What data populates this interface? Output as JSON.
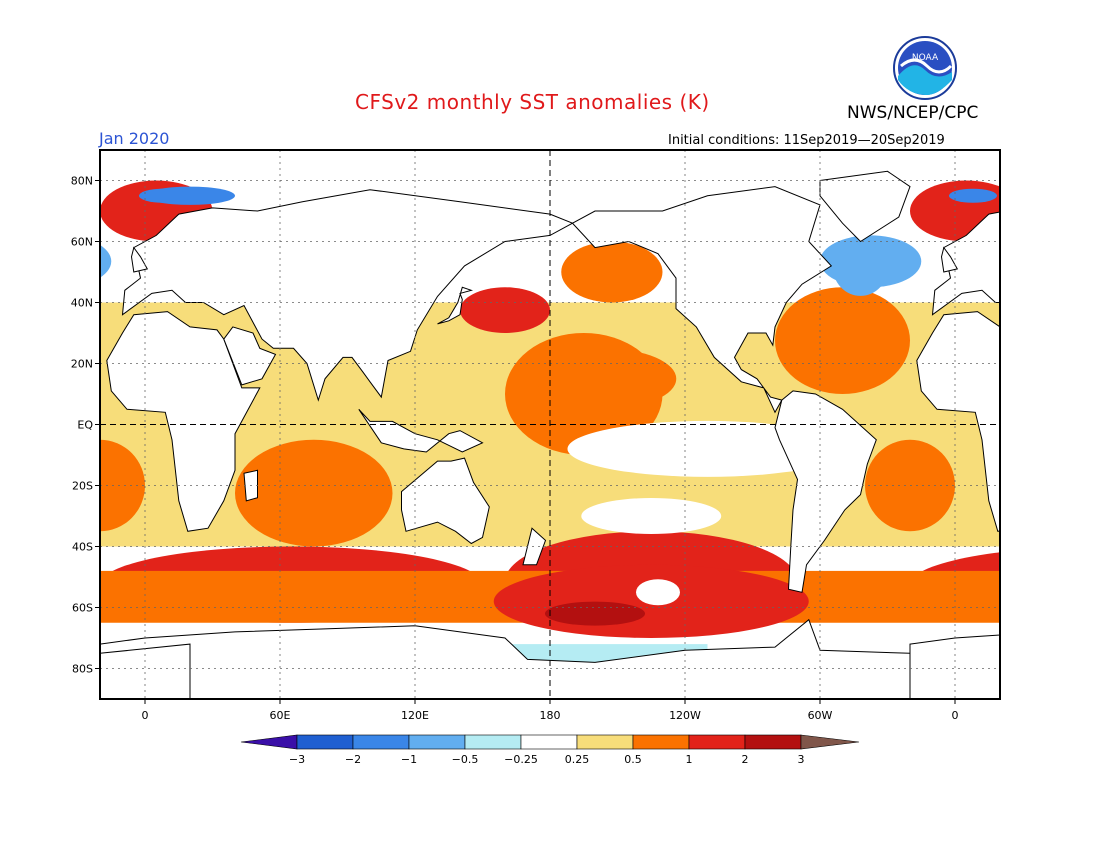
{
  "header": {
    "title": "CFSv2 monthly SST anomalies (K)",
    "agency": "NWS/NCEP/CPC",
    "month": "Jan 2020",
    "initial_conditions": "Initial conditions: 11Sep2019—20Sep2019",
    "logo_text": "NOAA"
  },
  "map": {
    "projection": "cylindrical",
    "lon_range": [
      -20,
      380
    ],
    "lat_range": [
      -90,
      90
    ],
    "lat_ticks": [
      {
        "lat": 80,
        "label": "80N"
      },
      {
        "lat": 60,
        "label": "60N"
      },
      {
        "lat": 40,
        "label": "40N"
      },
      {
        "lat": 20,
        "label": "20N"
      },
      {
        "lat": 0,
        "label": "EQ"
      },
      {
        "lat": -20,
        "label": "20S"
      },
      {
        "lat": -40,
        "label": "40S"
      },
      {
        "lat": -60,
        "label": "60S"
      },
      {
        "lat": -80,
        "label": "80S"
      }
    ],
    "lon_ticks": [
      {
        "lon": 0,
        "label": "0"
      },
      {
        "lon": 60,
        "label": "60E"
      },
      {
        "lon": 120,
        "label": "120E"
      },
      {
        "lon": 180,
        "label": "180"
      },
      {
        "lon": 240,
        "label": "120W"
      },
      {
        "lon": 300,
        "label": "60W"
      },
      {
        "lon": 360,
        "label": "0"
      }
    ],
    "grid_lines": "dotted",
    "reference_lines": [
      "equator (dashed)",
      "180 meridian (dashed)"
    ]
  },
  "colorbar": {
    "labels": [
      "−3",
      "−2",
      "−1",
      "−0.5",
      "−0.25",
      "0.25",
      "0.5",
      "1",
      "2",
      "3"
    ],
    "colors": [
      "#3a0fa8",
      "#1f5fd1",
      "#3a86e8",
      "#62aef0",
      "#b5ecf3",
      "#ffffff",
      "#f7dd7a",
      "#fb7200",
      "#e2231a",
      "#b31010",
      "#80564a"
    ]
  },
  "chart_data": {
    "type": "heatmap",
    "title": "CFSv2 monthly SST anomalies (K)",
    "units": "K",
    "valid_month": "Jan 2020",
    "initial_conditions": "11Sep2019—20Sep2019",
    "contour_levels": [
      -3,
      -2,
      -1,
      -0.5,
      -0.25,
      0.25,
      0.5,
      1,
      2,
      3
    ],
    "regions": [
      {
        "name": "Equatorial/central Pacific",
        "lon": [
          160,
          230
        ],
        "lat": [
          -10,
          30
        ],
        "category": "0.5 to 1"
      },
      {
        "name": "Gulf of Alaska / NE Pacific",
        "lon": [
          185,
          230
        ],
        "lat": [
          40,
          60
        ],
        "category": "0.5 to 1"
      },
      {
        "name": "NW Pacific off Japan",
        "lon": [
          140,
          180
        ],
        "lat": [
          30,
          45
        ],
        "category": "1 to 2"
      },
      {
        "name": "Southern Ocean south Pacific",
        "lon": [
          160,
          290
        ],
        "lat": [
          -68,
          -35
        ],
        "category": "1 to 2"
      },
      {
        "name": "Southern Ocean core south Pacific",
        "lon": [
          190,
          260
        ],
        "lat": [
          -66,
          -56
        ],
        "category": "2 to 3"
      },
      {
        "name": "Southern Ocean Indian/Atlantic",
        "lon": [
          -20,
          150
        ],
        "lat": [
          -65,
          -40
        ],
        "category": "1 to 2"
      },
      {
        "name": "Indian Ocean subtropics",
        "lon": [
          40,
          110
        ],
        "lat": [
          -40,
          -5
        ],
        "category": "0.5 to 1"
      },
      {
        "name": "North Atlantic subtropics",
        "lon": [
          280,
          340
        ],
        "lat": [
          10,
          45
        ],
        "category": "0.5 to 1"
      },
      {
        "name": "Labrador Sea / subpolar Atlantic",
        "lon": [
          300,
          345
        ],
        "lat": [
          45,
          62
        ],
        "category": "-1 to -0.25"
      },
      {
        "name": "Greenland-Norwegian seas",
        "lon": [
          -20,
          30
        ],
        "lat": [
          60,
          80
        ],
        "category": "1 to 3"
      },
      {
        "name": "Barents Sea",
        "lon": [
          0,
          40
        ],
        "lat": [
          72,
          78
        ],
        "category": "-2 to -1"
      },
      {
        "name": "South Atlantic",
        "lon": [
          320,
          360
        ],
        "lat": [
          -35,
          -5
        ],
        "category": "0.5 to 1"
      },
      {
        "name": "Eastern equatorial Pacific",
        "lon": [
          230,
          280
        ],
        "lat": [
          -15,
          0
        ],
        "category": "-0.25 to 0.25"
      }
    ]
  }
}
